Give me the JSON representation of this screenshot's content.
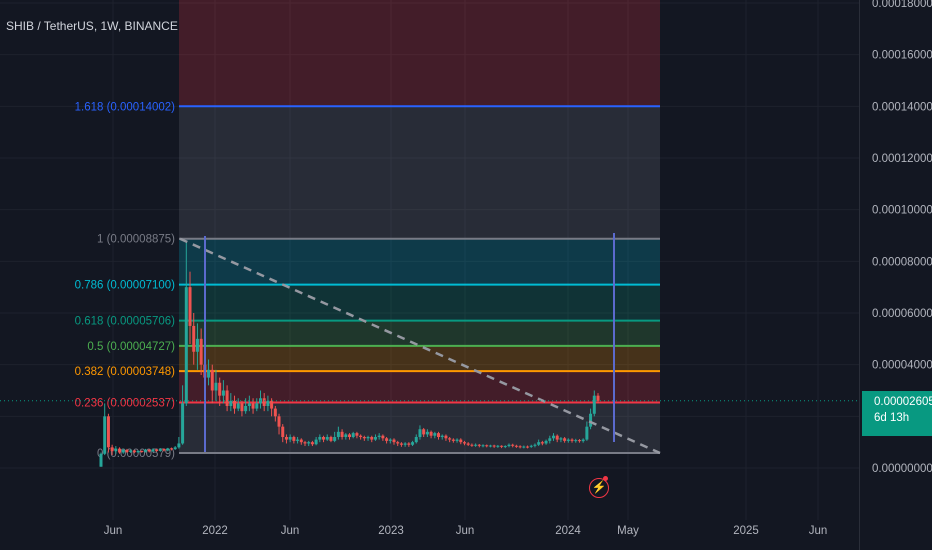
{
  "header": {
    "title": "SHIB / TetherUS, 1W, BINANCE"
  },
  "price_badge": {
    "price": "0.00002605",
    "countdown": "6d 13h"
  },
  "colors": {
    "background": "#131722",
    "grid": "#1e222d",
    "candle_up": "#26a69a",
    "candle_down": "#ef5350",
    "badge": "#089981"
  },
  "chart_data": {
    "type": "candlestick",
    "y_axis": {
      "min": 0,
      "max": 0.00018,
      "ticks": [
        "0.00000000",
        "0.00002000",
        "0.00004000",
        "0.00006000",
        "0.00008000",
        "0.00010000",
        "0.00012000",
        "0.00014000",
        "0.00016000",
        "0.00018000"
      ],
      "tick_values": [
        0,
        2e-05,
        4e-05,
        6e-05,
        8e-05,
        0.0001,
        0.00012,
        0.00014,
        0.00016,
        0.00018
      ]
    },
    "x_axis": {
      "ticks": [
        "Jun",
        "2022",
        "Jun",
        "2023",
        "Jun",
        "2024",
        "May",
        "2025",
        "Jun"
      ]
    },
    "fib_levels": [
      {
        "label": "1.618 (0.00014002)",
        "value": 0.00014002,
        "color": "#2962ff"
      },
      {
        "label": "1 (0.00008875)",
        "value": 8.875e-05,
        "color": "#787b86"
      },
      {
        "label": "0.786 (0.00007100)",
        "value": 7.1e-05,
        "color": "#00bcd4"
      },
      {
        "label": "0.618 (0.00005706)",
        "value": 5.706e-05,
        "color": "#089981"
      },
      {
        "label": "0.5 (0.00004727)",
        "value": 4.727e-05,
        "color": "#4caf50"
      },
      {
        "label": "0.382 (0.00003748)",
        "value": 3.748e-05,
        "color": "#ff9800"
      },
      {
        "label": "0.236 (0.00002537)",
        "value": 2.537e-05,
        "color": "#f23645"
      },
      {
        "label": "0 (0.00000579)",
        "value": 5.79e-06,
        "color": "#787b86"
      }
    ],
    "candles": [
      [
        5e-07,
        5.5e-06,
        5e-07,
        6e-06
      ],
      [
        5.5e-06,
        2e-05,
        5e-06,
        2.5e-05
      ],
      [
        2e-05,
        8e-06,
        6e-06,
        2.1e-05
      ],
      [
        8e-06,
        6.5e-06,
        5e-06,
        9e-06
      ],
      [
        6.5e-06,
        7.5e-06,
        5.5e-06,
        8.5e-06
      ],
      [
        7.5e-06,
        6e-06,
        5.5e-06,
        8e-06
      ],
      [
        6e-06,
        7e-06,
        5.5e-06,
        7.5e-06
      ],
      [
        7e-06,
        6.2e-06,
        5.8e-06,
        7.4e-06
      ],
      [
        6.2e-06,
        6.8e-06,
        5.8e-06,
        7.2e-06
      ],
      [
        6.8e-06,
        6.1e-06,
        5.7e-06,
        7e-06
      ],
      [
        6.1e-06,
        6.6e-06,
        5.8e-06,
        6.9e-06
      ],
      [
        6.6e-06,
        6.3e-06,
        5.9e-06,
        6.8e-06
      ],
      [
        6.3e-06,
        7.1e-06,
        6e-06,
        7.4e-06
      ],
      [
        7.1e-06,
        6.4e-06,
        6e-06,
        7.3e-06
      ],
      [
        6.4e-06,
        7.2e-06,
        6.2e-06,
        7.6e-06
      ],
      [
        7.2e-06,
        6.6e-06,
        6.2e-06,
        7.4e-06
      ],
      [
        6.6e-06,
        7.4e-06,
        6.3e-06,
        7.7e-06
      ],
      [
        7.4e-06,
        6.8e-06,
        6.4e-06,
        7.6e-06
      ],
      [
        6.8e-06,
        7.6e-06,
        6.5e-06,
        7.8e-06
      ],
      [
        7.6e-06,
        7.3e-06,
        6.8e-06,
        7.9e-06
      ],
      [
        7.3e-06,
        8e-06,
        7e-06,
        8.5e-06
      ],
      [
        8e-06,
        9.5e-06,
        7.5e-06,
        1.2e-05
      ],
      [
        9.5e-06,
        2.5e-05,
        9e-06,
        3.2e-05
      ],
      [
        2.5e-05,
        7e-05,
        2.4e-05,
        8.8e-05
      ],
      [
        7e-05,
        5.5e-05,
        4.8e-05,
        7.6e-05
      ],
      [
        5.5e-05,
        4.5e-05,
        4e-05,
        6e-05
      ],
      [
        4.5e-05,
        5e-05,
        3.8e-05,
        5.6e-05
      ],
      [
        5e-05,
        4e-05,
        3.6e-05,
        5.4e-05
      ],
      [
        4e-05,
        3.5e-05,
        3e-05,
        4.6e-05
      ],
      [
        3.5e-05,
        3.8e-05,
        3.2e-05,
        4.2e-05
      ],
      [
        3.8e-05,
        3e-05,
        2.5e-05,
        4e-05
      ],
      [
        3e-05,
        3.3e-05,
        2.6e-05,
        3.8e-05
      ],
      [
        3.3e-05,
        2.8e-05,
        2.4e-05,
        3.5e-05
      ],
      [
        2.8e-05,
        3e-05,
        2.5e-05,
        3.4e-05
      ],
      [
        3e-05,
        2.4e-05,
        2.2e-05,
        3.2e-05
      ],
      [
        2.4e-05,
        2.6e-05,
        2.2e-05,
        2.9e-05
      ],
      [
        2.6e-05,
        2.3e-05,
        2.1e-05,
        2.8e-05
      ],
      [
        2.3e-05,
        2.5e-05,
        2.2e-05,
        2.7e-05
      ],
      [
        2.5e-05,
        2.2e-05,
        2e-05,
        2.6e-05
      ],
      [
        2.2e-05,
        2.4e-05,
        2.1e-05,
        2.7e-05
      ],
      [
        2.4e-05,
        2.5e-05,
        2.2e-05,
        2.8e-05
      ],
      [
        2.5e-05,
        2.3e-05,
        2.1e-05,
        2.7e-05
      ],
      [
        2.3e-05,
        2.5e-05,
        2.2e-05,
        2.7e-05
      ],
      [
        2.5e-05,
        2.7e-05,
        2.3e-05,
        3e-05
      ],
      [
        2.7e-05,
        2.4e-05,
        2.2e-05,
        2.9e-05
      ],
      [
        2.4e-05,
        2.6e-05,
        2.2e-05,
        2.8e-05
      ],
      [
        2.6e-05,
        2.3e-05,
        2e-05,
        2.7e-05
      ],
      [
        2.3e-05,
        2e-05,
        1.8e-05,
        2.4e-05
      ],
      [
        2e-05,
        1.6e-05,
        1.3e-05,
        2.1e-05
      ],
      [
        1.6e-05,
        1.2e-05,
        1e-05,
        1.7e-05
      ],
      [
        1.2e-05,
        1.1e-05,
        9.5e-06,
        1.3e-05
      ],
      [
        1.1e-05,
        1.2e-05,
        1e-05,
        1.3e-05
      ],
      [
        1.2e-05,
        1.05e-05,
        9.5e-06,
        1.25e-05
      ],
      [
        1.05e-05,
        1.1e-05,
        9.5e-06,
        1.2e-05
      ],
      [
        1.1e-05,
        1e-05,
        9e-06,
        1.15e-05
      ],
      [
        1e-05,
        9.5e-06,
        8.5e-06,
        1.05e-05
      ],
      [
        9.5e-06,
        1e-05,
        8.5e-06,
        1.05e-05
      ],
      [
        1e-05,
        9.2e-06,
        8.5e-06,
        1.05e-05
      ],
      [
        9.2e-06,
        1.1e-05,
        8.8e-06,
        1.2e-05
      ],
      [
        1.1e-05,
        1.2e-05,
        1e-05,
        1.3e-05
      ],
      [
        1.2e-05,
        1.1e-05,
        1e-05,
        1.25e-05
      ],
      [
        1.1e-05,
        1.2e-05,
        1.05e-05,
        1.3e-05
      ],
      [
        1.2e-05,
        1.05e-05,
        1e-05,
        1.25e-05
      ],
      [
        1.05e-05,
        1.2e-05,
        1e-05,
        1.4e-05
      ],
      [
        1.2e-05,
        1.4e-05,
        1.1e-05,
        1.6e-05
      ],
      [
        1.4e-05,
        1.2e-05,
        1.1e-05,
        1.5e-05
      ],
      [
        1.2e-05,
        1.3e-05,
        1.1e-05,
        1.35e-05
      ],
      [
        1.3e-05,
        1.2e-05,
        1.1e-05,
        1.35e-05
      ],
      [
        1.2e-05,
        1.35e-05,
        1.15e-05,
        1.4e-05
      ],
      [
        1.35e-05,
        1.25e-05,
        1.15e-05,
        1.4e-05
      ],
      [
        1.25e-05,
        1.2e-05,
        1.1e-05,
        1.3e-05
      ],
      [
        1.2e-05,
        1.15e-05,
        1.05e-05,
        1.25e-05
      ],
      [
        1.15e-05,
        1.2e-05,
        1.05e-05,
        1.25e-05
      ],
      [
        1.2e-05,
        1.1e-05,
        1e-05,
        1.25e-05
      ],
      [
        1.1e-05,
        1.2e-05,
        1.05e-05,
        1.3e-05
      ],
      [
        1.2e-05,
        1.25e-05,
        1.1e-05,
        1.35e-05
      ],
      [
        1.25e-05,
        1.15e-05,
        1.05e-05,
        1.3e-05
      ],
      [
        1.15e-05,
        1.05e-05,
        9.5e-06,
        1.2e-05
      ],
      [
        1.05e-05,
        1.1e-05,
        9.5e-06,
        1.15e-05
      ],
      [
        1.1e-05,
        1e-05,
        9e-06,
        1.15e-05
      ],
      [
        1e-05,
        9.5e-06,
        8.5e-06,
        1.05e-05
      ],
      [
        9.5e-06,
        9e-06,
        8.2e-06,
        1e-05
      ],
      [
        9e-06,
        9.5e-06,
        8.2e-06,
        1e-05
      ],
      [
        9.5e-06,
        9e-06,
        8.2e-06,
        1e-05
      ],
      [
        9e-06,
        1e-05,
        8.5e-06,
        1.05e-05
      ],
      [
        1e-05,
        1.2e-05,
        9.5e-06,
        1.3e-05
      ],
      [
        1.2e-05,
        1.5e-05,
        1.1e-05,
        1.65e-05
      ],
      [
        1.5e-05,
        1.3e-05,
        1.2e-05,
        1.55e-05
      ],
      [
        1.3e-05,
        1.4e-05,
        1.2e-05,
        1.5e-05
      ],
      [
        1.4e-05,
        1.25e-05,
        1.15e-05,
        1.45e-05
      ],
      [
        1.25e-05,
        1.35e-05,
        1.15e-05,
        1.4e-05
      ],
      [
        1.35e-05,
        1.2e-05,
        1.1e-05,
        1.4e-05
      ],
      [
        1.2e-05,
        1.25e-05,
        1.1e-05,
        1.3e-05
      ],
      [
        1.25e-05,
        1.15e-05,
        1.05e-05,
        1.3e-05
      ],
      [
        1.15e-05,
        1.1e-05,
        1e-05,
        1.2e-05
      ],
      [
        1.1e-05,
        1.05e-05,
        9.8e-06,
        1.15e-05
      ],
      [
        1.05e-05,
        1.1e-05,
        9.8e-06,
        1.15e-05
      ],
      [
        1.1e-05,
        1e-05,
        9.2e-06,
        1.15e-05
      ],
      [
        1e-05,
        9.5e-06,
        8.8e-06,
        1.05e-05
      ],
      [
        9.5e-06,
        9e-06,
        8.5e-06,
        1e-05
      ],
      [
        9e-06,
        8.8e-06,
        8.2e-06,
        9.5e-06
      ],
      [
        8.8e-06,
        9e-06,
        8.2e-06,
        9.5e-06
      ],
      [
        9e-06,
        8.6e-06,
        8e-06,
        9.3e-06
      ],
      [
        8.6e-06,
        8.8e-06,
        8e-06,
        9.2e-06
      ],
      [
        8.8e-06,
        8.5e-06,
        8e-06,
        9.1e-06
      ],
      [
        8.5e-06,
        8.7e-06,
        8e-06,
        9e-06
      ],
      [
        8.7e-06,
        8.4e-06,
        7.8e-06,
        9e-06
      ],
      [
        8.4e-06,
        8.6e-06,
        7.8e-06,
        8.9e-06
      ],
      [
        8.6e-06,
        8.3e-06,
        7.7e-06,
        8.8e-06
      ],
      [
        8.3e-06,
        8.5e-06,
        7.7e-06,
        8.8e-06
      ],
      [
        8.5e-06,
        9e-06,
        8e-06,
        9.5e-06
      ],
      [
        9e-06,
        8.6e-06,
        8e-06,
        9.4e-06
      ],
      [
        8.6e-06,
        8.4e-06,
        7.8e-06,
        9e-06
      ],
      [
        8.4e-06,
        8.2e-06,
        7.6e-06,
        8.8e-06
      ],
      [
        8.2e-06,
        8.3e-06,
        7.6e-06,
        8.7e-06
      ],
      [
        8.3e-06,
        8.2e-06,
        7.6e-06,
        8.7e-06
      ],
      [
        8.2e-06,
        8.6e-06,
        7.8e-06,
        9e-06
      ],
      [
        8.6e-06,
        9e-06,
        8e-06,
        9.5e-06
      ],
      [
        9e-06,
        1e-05,
        8.5e-06,
        1.1e-05
      ],
      [
        1e-05,
        9.5e-06,
        8.8e-06,
        1.05e-05
      ],
      [
        9.5e-06,
        1.05e-05,
        9e-06,
        1.1e-05
      ],
      [
        1.05e-05,
        1.15e-05,
        9.5e-06,
        1.25e-05
      ],
      [
        1.15e-05,
        1.25e-05,
        1.05e-05,
        1.35e-05
      ],
      [
        1.25e-05,
        1.1e-05,
        1e-05,
        1.3e-05
      ],
      [
        1.1e-05,
        1.15e-05,
        1e-05,
        1.2e-05
      ],
      [
        1.15e-05,
        1.05e-05,
        9.8e-06,
        1.2e-05
      ],
      [
        1.05e-05,
        1.1e-05,
        9.8e-06,
        1.15e-05
      ],
      [
        1.1e-05,
        1.05e-05,
        9.8e-06,
        1.15e-05
      ],
      [
        1.05e-05,
        1.08e-05,
        9.8e-06,
        1.13e-05
      ],
      [
        1.08e-05,
        1.04e-05,
        9.8e-06,
        1.12e-05
      ],
      [
        1.04e-05,
        1.1e-05,
        9.8e-06,
        1.15e-05
      ],
      [
        1.1e-05,
        1.6e-05,
        1.05e-05,
        1.8e-05
      ],
      [
        1.6e-05,
        2.1e-05,
        1.5e-05,
        2.3e-05
      ],
      [
        2.1e-05,
        2.8e-05,
        2e-05,
        3e-05
      ],
      [
        2.8e-05,
        2.6e-05,
        2.5e-05,
        2.9e-05
      ]
    ]
  }
}
